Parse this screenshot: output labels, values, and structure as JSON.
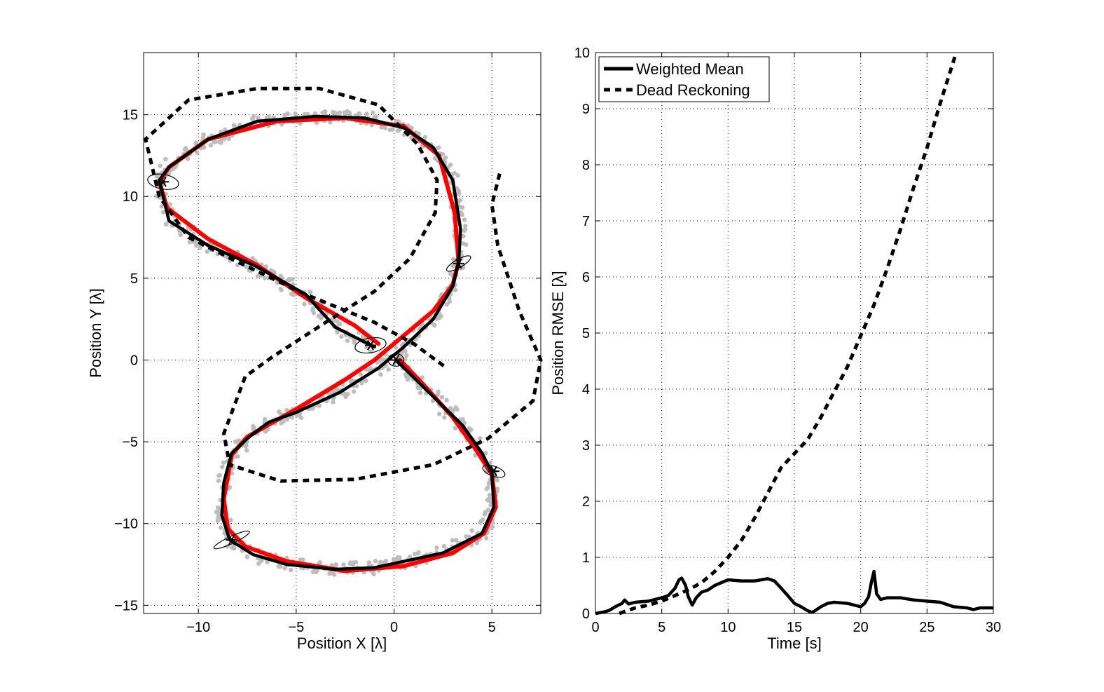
{
  "chart_data": [
    {
      "type": "line",
      "xlabel": "Position X [λ]",
      "ylabel": "Position Y [λ]",
      "xlim": [
        -12.8,
        7.5
      ],
      "ylim": [
        -15.5,
        18.8
      ],
      "xticks": [
        -10,
        -5,
        0,
        5
      ],
      "yticks": [
        -15,
        -10,
        -5,
        0,
        5,
        10,
        15
      ],
      "xtick_labels": [
        "−10",
        "−5",
        "0",
        "5"
      ],
      "ytick_labels": [
        "−15",
        "−10",
        "−5",
        "0",
        "5",
        "10",
        "15"
      ],
      "grid": true,
      "colors": {
        "true_path": "#ff0000",
        "estimate": "#000000",
        "particles": "#bdbdbd",
        "dead_reckoning": "#000000"
      },
      "true_path": {
        "x": [
          0.3,
          1.5,
          3.0,
          4.2,
          5.0,
          5.2,
          4.6,
          3.0,
          0.5,
          -2.5,
          -5.5,
          -7.6,
          -8.5,
          -8.7,
          -8.3,
          -7.5,
          -5.0,
          -2.5,
          -1.0,
          0.3,
          2.0,
          3.0,
          3.3,
          3.1,
          2.3,
          0.5,
          -2.5,
          -6.0,
          -9.5,
          -11.5,
          -12.0,
          -11.6,
          -9.5,
          -7.0,
          -4.5,
          -2.0,
          -0.8
        ],
        "y": [
          0.0,
          -1.5,
          -3.5,
          -5.5,
          -7.0,
          -9.0,
          -10.6,
          -11.8,
          -12.6,
          -12.9,
          -12.3,
          -11.4,
          -10.3,
          -8.5,
          -5.8,
          -4.7,
          -3.0,
          -1.2,
          0.0,
          1.3,
          3.0,
          4.6,
          6.0,
          9.0,
          12.5,
          14.3,
          14.8,
          14.6,
          13.5,
          11.8,
          10.9,
          9.3,
          7.4,
          5.8,
          3.8,
          2.1,
          1.0
        ]
      },
      "estimate": {
        "x": [
          0.1,
          1.8,
          3.5,
          4.5,
          5.0,
          5.1,
          4.5,
          2.5,
          -1.0,
          -3.0,
          -5.5,
          -7.2,
          -8.4,
          -8.8,
          -8.7,
          -8.3,
          -7.4,
          -6.4,
          -5.0,
          -2.8,
          -0.8,
          0.5,
          2.0,
          3.0,
          3.3,
          3.4,
          3.0,
          2.0,
          0.5,
          -1.5,
          -4.0,
          -7.0,
          -9.5,
          -11.5,
          -12.0,
          -11.5,
          -9.5,
          -7.0,
          -4.5,
          -3.0,
          -1.0
        ],
        "y": [
          0.0,
          -2.0,
          -4.0,
          -5.7,
          -6.9,
          -9.0,
          -10.6,
          -11.8,
          -12.7,
          -12.8,
          -12.5,
          -11.9,
          -11.0,
          -9.5,
          -7.5,
          -5.7,
          -4.7,
          -3.8,
          -3.2,
          -2.0,
          -0.5,
          0.8,
          2.5,
          4.5,
          6.0,
          8.0,
          11.0,
          13.0,
          14.2,
          14.8,
          14.9,
          14.6,
          13.5,
          11.8,
          11.0,
          8.5,
          7.0,
          5.7,
          4.0,
          2.0,
          0.8
        ]
      },
      "dead_reckoning": {
        "x": [
          5.4,
          5.0,
          5.3,
          6.4,
          7.5,
          7.1,
          4.8,
          2.0,
          -2.0,
          -5.8,
          -8.4,
          -8.7,
          -7.6,
          -6.2,
          -3.5,
          -1.0,
          0.8,
          2.1,
          2.2,
          1.2,
          -0.8,
          -3.8,
          -7.0,
          -10.5,
          -12.7,
          -12.0,
          -10.5,
          -8.0,
          -4.5,
          -1.0,
          1.0,
          2.7
        ],
        "y": [
          11.4,
          9.5,
          7.0,
          3.0,
          0.0,
          -2.5,
          -4.8,
          -6.4,
          -7.3,
          -7.4,
          -6.4,
          -4.5,
          -1.0,
          0.2,
          2.3,
          4.2,
          6.2,
          9.0,
          11.0,
          13.2,
          15.6,
          16.6,
          16.6,
          15.9,
          13.5,
          10.0,
          7.5,
          6.0,
          4.0,
          2.3,
          1.0,
          -0.5
        ]
      },
      "uncertainty_ellipses": [
        {
          "x": -11.8,
          "y": 10.9,
          "rx": 0.8,
          "ry": 0.45,
          "angle": 10
        },
        {
          "x": 3.3,
          "y": 5.9,
          "rx": 0.7,
          "ry": 0.25,
          "angle": -30
        },
        {
          "x": -1.2,
          "y": 0.9,
          "rx": 0.8,
          "ry": 0.45,
          "angle": -10
        },
        {
          "x": 0.1,
          "y": 0.0,
          "rx": 0.4,
          "ry": 0.38,
          "angle": 0
        },
        {
          "x": 5.1,
          "y": -6.8,
          "rx": 0.6,
          "ry": 0.3,
          "angle": 20
        },
        {
          "x": -8.3,
          "y": -11.0,
          "rx": 1.0,
          "ry": 0.22,
          "angle": -25
        }
      ]
    },
    {
      "type": "line",
      "xlabel": "Time [s]",
      "ylabel": "Position RMSE [λ]",
      "xlim": [
        0,
        30
      ],
      "ylim": [
        0,
        10
      ],
      "xticks": [
        0,
        5,
        10,
        15,
        20,
        25,
        30
      ],
      "yticks": [
        0,
        1,
        2,
        3,
        4,
        5,
        6,
        7,
        8,
        9,
        10
      ],
      "grid": true,
      "legend": "top-left",
      "series": [
        {
          "name": "Weighted Mean",
          "style": "solid",
          "x": [
            0,
            0.5,
            1.0,
            1.5,
            2.0,
            2.2,
            2.5,
            3.0,
            4.0,
            5.0,
            5.5,
            6.0,
            6.3,
            6.5,
            6.8,
            7.0,
            7.3,
            7.6,
            8.0,
            8.5,
            9.0,
            10.0,
            11.0,
            12.0,
            12.5,
            13.0,
            13.5,
            14.0,
            14.5,
            15.0,
            15.5,
            16.0,
            16.3,
            16.5,
            17.0,
            17.5,
            18.0,
            19.0,
            19.5,
            20.0,
            20.3,
            20.6,
            20.8,
            21.0,
            21.2,
            21.5,
            22.0,
            23.0,
            24.0,
            25.0,
            26.0,
            27.0,
            28.0,
            28.5,
            29.0,
            30.0
          ],
          "y": [
            0.0,
            0.02,
            0.05,
            0.12,
            0.18,
            0.24,
            0.17,
            0.2,
            0.22,
            0.28,
            0.32,
            0.45,
            0.6,
            0.63,
            0.5,
            0.3,
            0.15,
            0.28,
            0.38,
            0.42,
            0.5,
            0.6,
            0.58,
            0.58,
            0.6,
            0.62,
            0.58,
            0.45,
            0.32,
            0.18,
            0.12,
            0.05,
            0.02,
            0.04,
            0.12,
            0.18,
            0.2,
            0.18,
            0.15,
            0.12,
            0.18,
            0.3,
            0.55,
            0.75,
            0.35,
            0.25,
            0.28,
            0.28,
            0.24,
            0.22,
            0.2,
            0.12,
            0.1,
            0.07,
            0.1,
            0.1
          ]
        },
        {
          "name": "Dead Reckoning",
          "style": "dashed",
          "x": [
            1.8,
            3,
            4,
            5,
            6,
            7,
            8,
            9,
            10,
            11,
            12,
            13,
            14,
            15,
            16,
            17,
            18,
            19,
            20,
            21,
            22,
            23,
            24,
            25,
            26,
            27.2
          ],
          "y": [
            0.0,
            0.1,
            0.15,
            0.22,
            0.32,
            0.42,
            0.55,
            0.75,
            1.0,
            1.3,
            1.7,
            2.15,
            2.6,
            2.85,
            3.1,
            3.5,
            3.95,
            4.4,
            4.95,
            5.5,
            6.15,
            6.85,
            7.6,
            8.3,
            9.1,
            10.0
          ]
        }
      ]
    }
  ]
}
